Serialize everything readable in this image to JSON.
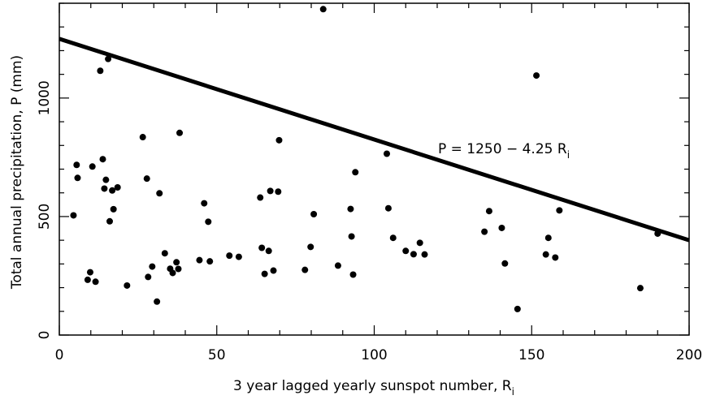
{
  "chart_data": {
    "type": "scatter",
    "xlabel": "3 year lagged yearly sunspot number, R",
    "xlabel_sub": "i",
    "ylabel": "Total annual precipitation, P (mm)",
    "xlim": [
      0,
      200
    ],
    "ylim": [
      0,
      1400
    ],
    "x_ticks": [
      0,
      50,
      100,
      150,
      200
    ],
    "x_tick_labels": [
      "0",
      "50",
      "100",
      "150",
      "200"
    ],
    "y_ticks": [
      0,
      500,
      1000
    ],
    "y_tick_labels": [
      "0",
      "500",
      "1000"
    ],
    "grid": false,
    "marker_color": "#000000",
    "line_color": "#000000",
    "fit_line": {
      "intercept": 1250,
      "slope": -4.25,
      "x_start": 0,
      "x_end": 200
    },
    "annotation": {
      "text": "P = 1250 − 4.25 R",
      "sub": "i"
    },
    "points": [
      [
        4.5,
        505
      ],
      [
        5.5,
        718
      ],
      [
        5.8,
        663
      ],
      [
        9,
        233
      ],
      [
        9.8,
        265
      ],
      [
        10.5,
        711
      ],
      [
        11.5,
        225
      ],
      [
        13,
        1115
      ],
      [
        13.8,
        742
      ],
      [
        14.3,
        618
      ],
      [
        14.8,
        655
      ],
      [
        15.5,
        1165
      ],
      [
        16,
        480
      ],
      [
        16.8,
        610
      ],
      [
        17.2,
        531
      ],
      [
        18.5,
        623
      ],
      [
        21.5,
        209
      ],
      [
        26.5,
        835
      ],
      [
        27.8,
        660
      ],
      [
        28.2,
        245
      ],
      [
        29.5,
        289
      ],
      [
        31,
        141
      ],
      [
        31.8,
        598
      ],
      [
        33.5,
        345
      ],
      [
        35.2,
        280
      ],
      [
        36,
        262
      ],
      [
        37.2,
        307
      ],
      [
        37.8,
        279
      ],
      [
        38.2,
        853
      ],
      [
        44.5,
        316
      ],
      [
        46,
        556
      ],
      [
        47.3,
        478
      ],
      [
        47.8,
        311
      ],
      [
        54,
        335
      ],
      [
        57,
        330
      ],
      [
        63.8,
        580
      ],
      [
        64.3,
        368
      ],
      [
        65.2,
        258
      ],
      [
        66.5,
        355
      ],
      [
        67,
        608
      ],
      [
        68,
        272
      ],
      [
        69.5,
        605
      ],
      [
        69.8,
        822
      ],
      [
        78,
        275
      ],
      [
        79.8,
        372
      ],
      [
        80.8,
        510
      ],
      [
        83.8,
        1375
      ],
      [
        88.5,
        293
      ],
      [
        92.5,
        532
      ],
      [
        92.8,
        416
      ],
      [
        93.3,
        255
      ],
      [
        94,
        687
      ],
      [
        104,
        765
      ],
      [
        104.5,
        535
      ],
      [
        106,
        410
      ],
      [
        110,
        355
      ],
      [
        112.5,
        341
      ],
      [
        114.5,
        389
      ],
      [
        116,
        340
      ],
      [
        135,
        436
      ],
      [
        136.5,
        523
      ],
      [
        140.5,
        452
      ],
      [
        141.5,
        302
      ],
      [
        145.5,
        110
      ],
      [
        151.5,
        1095
      ],
      [
        154.5,
        340
      ],
      [
        155.3,
        410
      ],
      [
        157.5,
        327
      ],
      [
        158.8,
        526
      ],
      [
        184.5,
        198
      ],
      [
        190,
        428
      ]
    ]
  }
}
